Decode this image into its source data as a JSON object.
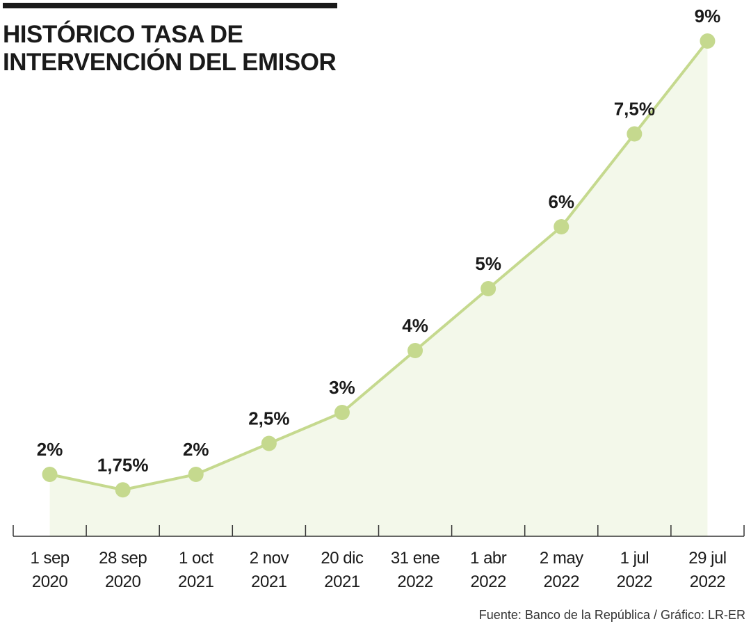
{
  "title_lines": [
    "HISTÓRICO TASA DE",
    "INTERVENCIÓN DEL EMISOR"
  ],
  "source": "Fuente: Banco de la República / Gráfico: LR-ER",
  "colors": {
    "line": "#c5d98e",
    "marker": "#c5d98e",
    "area": "#f3f8ea",
    "axis": "#333333",
    "text": "#1a1a1a"
  },
  "chart_data": {
    "type": "line",
    "title": "HISTÓRICO TASA DE INTERVENCIÓN DEL EMISOR",
    "xlabel": "",
    "ylabel": "",
    "ylim": [
      0,
      10
    ],
    "grid": false,
    "categories": [
      [
        "1 sep",
        "2020"
      ],
      [
        "28 sep",
        "2020"
      ],
      [
        "1 oct",
        "2021"
      ],
      [
        "2 nov",
        "2021"
      ],
      [
        "20 dic",
        "2021"
      ],
      [
        "31 ene",
        "2022"
      ],
      [
        "1 abr",
        "2022"
      ],
      [
        "2 may",
        "2022"
      ],
      [
        "1 jul",
        "2022"
      ],
      [
        "29 jul",
        "2022"
      ]
    ],
    "values": [
      2,
      1.75,
      2,
      2.5,
      3,
      4,
      5,
      6,
      7.5,
      9
    ],
    "data_labels": [
      "2%",
      "1,75%",
      "2%",
      "2,5%",
      "3%",
      "4%",
      "5%",
      "6%",
      "7,5%",
      "9%"
    ]
  }
}
